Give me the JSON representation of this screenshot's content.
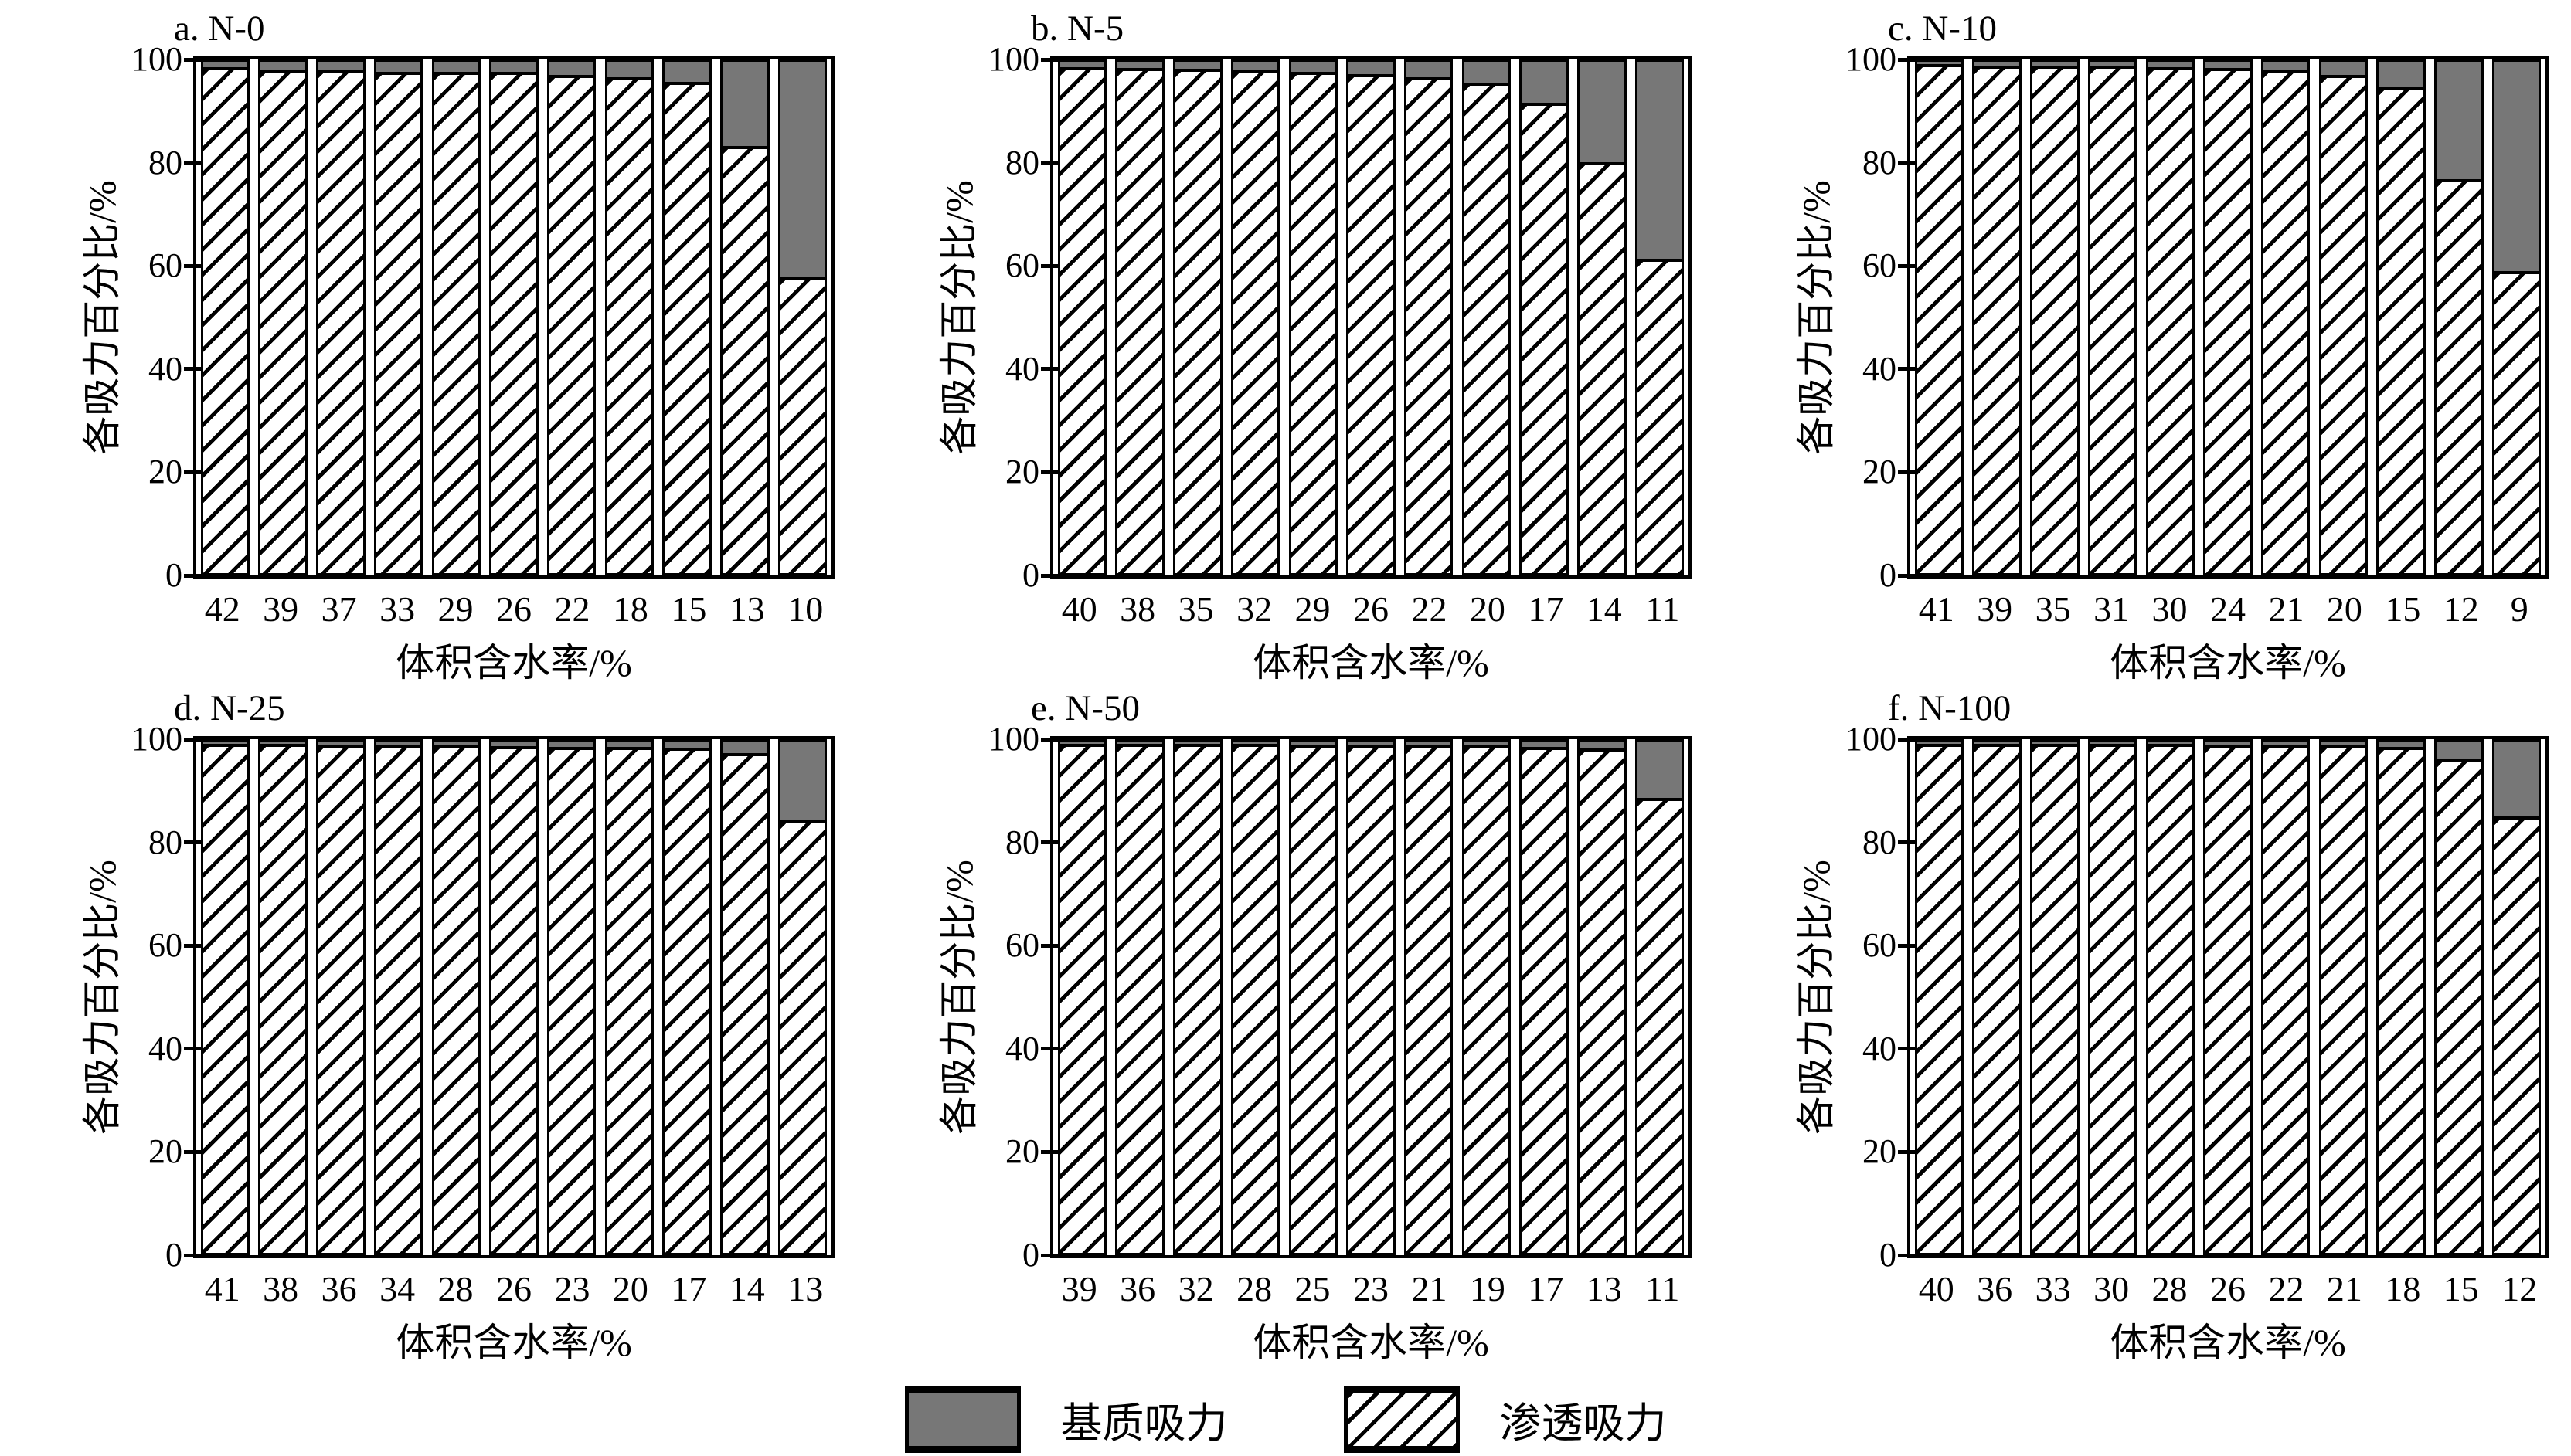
{
  "figure": {
    "y_axis_label": "各吸力百分比/%",
    "x_axis_label": "体积含水率/%",
    "y_ticks": [
      0,
      20,
      40,
      60,
      80,
      100
    ],
    "legend": [
      {
        "label": "基质吸力",
        "style": "solid-gray"
      },
      {
        "label": "渗透吸力",
        "style": "hatched-diagonal"
      }
    ],
    "colors": {
      "matric_fill": "#777777",
      "line": "#000000",
      "background": "#ffffff"
    }
  },
  "chart_data": [
    {
      "type": "bar",
      "stacked": true,
      "title": "a. N-0",
      "categories": [
        "42",
        "39",
        "37",
        "33",
        "29",
        "26",
        "22",
        "18",
        "15",
        "13",
        "10"
      ],
      "series": [
        {
          "name": "渗透吸力",
          "pattern": "hatched",
          "values": [
            99,
            98.5,
            98.5,
            98,
            98,
            98,
            97.5,
            97,
            96,
            83.5,
            58
          ]
        },
        {
          "name": "基质吸力",
          "pattern": "solid-gray",
          "values": [
            1,
            1.5,
            1.5,
            2,
            2,
            2,
            2.5,
            3,
            4,
            16.5,
            42
          ]
        }
      ],
      "xlabel": "体积含水率/%",
      "ylabel": "各吸力百分比/%",
      "ylim": [
        0,
        100
      ],
      "grid": false
    },
    {
      "type": "bar",
      "stacked": true,
      "title": "b. N-5",
      "categories": [
        "40",
        "38",
        "35",
        "32",
        "29",
        "26",
        "22",
        "20",
        "17",
        "14",
        "11"
      ],
      "series": [
        {
          "name": "渗透吸力",
          "pattern": "hatched",
          "values": [
            99,
            98.8,
            98.6,
            98.4,
            98,
            97.6,
            97,
            95.9,
            92,
            80.3,
            61.5
          ]
        },
        {
          "name": "基质吸力",
          "pattern": "solid-gray",
          "values": [
            1,
            1.2,
            1.4,
            1.6,
            2,
            2.4,
            3,
            4.1,
            8,
            19.7,
            38.5
          ]
        }
      ],
      "xlabel": "体积含水率/%",
      "ylabel": "各吸力百分比/%",
      "ylim": [
        0,
        100
      ],
      "grid": false
    },
    {
      "type": "bar",
      "stacked": true,
      "title": "c. N-10",
      "categories": [
        "41",
        "39",
        "35",
        "31",
        "30",
        "24",
        "21",
        "20",
        "15",
        "12",
        "9"
      ],
      "series": [
        {
          "name": "渗透吸力",
          "pattern": "hatched",
          "values": [
            99.5,
            99.3,
            99.2,
            99.2,
            99,
            98.8,
            98.5,
            97.5,
            95,
            77,
            59
          ]
        },
        {
          "name": "基质吸力",
          "pattern": "solid-gray",
          "values": [
            0.5,
            0.7,
            0.8,
            0.8,
            1,
            1.2,
            1.5,
            2.5,
            5,
            23,
            41
          ]
        }
      ],
      "xlabel": "体积含水率/%",
      "ylabel": "各吸力百分比/%",
      "ylim": [
        0,
        100
      ],
      "grid": false
    },
    {
      "type": "bar",
      "stacked": true,
      "title": "d. N-25",
      "categories": [
        "41",
        "38",
        "36",
        "34",
        "28",
        "26",
        "23",
        "20",
        "17",
        "14",
        "13"
      ],
      "series": [
        {
          "name": "渗透吸力",
          "pattern": "hatched",
          "values": [
            99.6,
            99.5,
            99.4,
            99.3,
            99.2,
            99.1,
            99,
            99,
            98.8,
            97.7,
            84.6
          ]
        },
        {
          "name": "基质吸力",
          "pattern": "solid-gray",
          "values": [
            0.4,
            0.5,
            0.6,
            0.7,
            0.8,
            0.9,
            1,
            1,
            1.2,
            2.3,
            15.4
          ]
        }
      ],
      "xlabel": "体积含水率/%",
      "ylabel": "各吸力百分比/%",
      "ylim": [
        0,
        100
      ],
      "grid": false
    },
    {
      "type": "bar",
      "stacked": true,
      "title": "e. N-50",
      "categories": [
        "39",
        "36",
        "32",
        "28",
        "25",
        "23",
        "21",
        "19",
        "17",
        "13",
        "11"
      ],
      "series": [
        {
          "name": "渗透吸力",
          "pattern": "hatched",
          "values": [
            99.6,
            99.6,
            99.5,
            99.5,
            99.4,
            99.4,
            99.3,
            99.2,
            99,
            98.7,
            89
          ]
        },
        {
          "name": "基质吸力",
          "pattern": "solid-gray",
          "values": [
            0.4,
            0.4,
            0.5,
            0.5,
            0.6,
            0.6,
            0.7,
            0.8,
            1,
            1.3,
            11
          ]
        }
      ],
      "xlabel": "体积含水率/%",
      "ylabel": "各吸力百分比/%",
      "ylim": [
        0,
        100
      ],
      "grid": false
    },
    {
      "type": "bar",
      "stacked": true,
      "title": "f. N-100",
      "categories": [
        "40",
        "36",
        "33",
        "30",
        "28",
        "26",
        "22",
        "21",
        "18",
        "15",
        "12"
      ],
      "series": [
        {
          "name": "渗透吸力",
          "pattern": "hatched",
          "values": [
            99.6,
            99.6,
            99.5,
            99.5,
            99.5,
            99.4,
            99.3,
            99.2,
            99,
            96.5,
            85.3
          ]
        },
        {
          "name": "基质吸力",
          "pattern": "solid-gray",
          "values": [
            0.4,
            0.4,
            0.5,
            0.5,
            0.5,
            0.6,
            0.7,
            0.8,
            1,
            3.5,
            14.7
          ]
        }
      ],
      "xlabel": "体积含水率/%",
      "ylabel": "各吸力百分比/%",
      "ylim": [
        0,
        100
      ],
      "grid": false
    }
  ]
}
